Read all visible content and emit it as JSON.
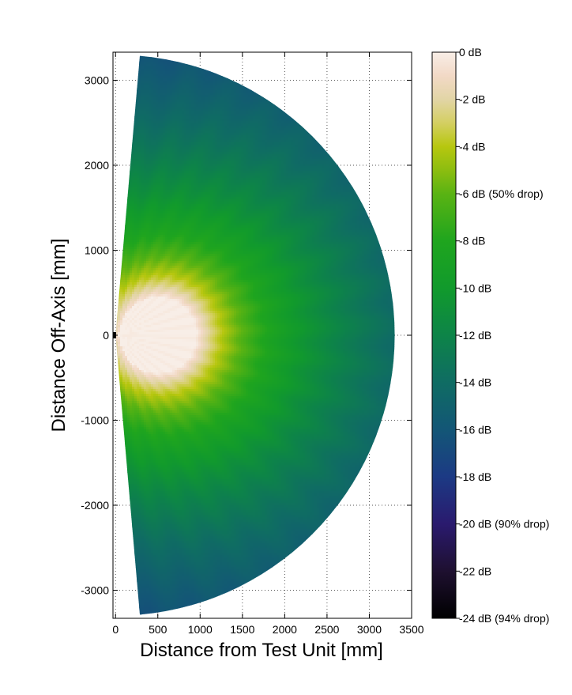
{
  "chart_data": {
    "type": "heatmap",
    "title": "",
    "xlabel": "Distance from Test Unit [mm]",
    "ylabel": "Distance Off-Axis [mm]",
    "xlim": [
      -30,
      3500
    ],
    "ylim": [
      -3330,
      3330
    ],
    "x_ticks": [
      {
        "value": 0,
        "label": "0"
      },
      {
        "value": 500,
        "label": "500"
      },
      {
        "value": 1000,
        "label": "1000"
      },
      {
        "value": 1500,
        "label": "1500"
      },
      {
        "value": 2000,
        "label": "2000"
      },
      {
        "value": 2500,
        "label": "2500"
      },
      {
        "value": 3000,
        "label": "3000"
      },
      {
        "value": 3500,
        "label": "3500"
      }
    ],
    "y_ticks": [
      {
        "value": 3000,
        "label": "3000"
      },
      {
        "value": 2000,
        "label": "2000"
      },
      {
        "value": 1000,
        "label": "1000"
      },
      {
        "value": 0,
        "label": "0"
      },
      {
        "value": -1000,
        "label": "-1000"
      },
      {
        "value": -2000,
        "label": "-2000"
      },
      {
        "value": -3000,
        "label": "-3000"
      }
    ],
    "grid": true,
    "grid_style": "dotted",
    "field": {
      "max_radius": 3300,
      "max_angle_deg": 85,
      "hot_spot_center": [
        500,
        0
      ],
      "hot_spot_radius": 450
    },
    "colorbar": {
      "range": [
        -24,
        0
      ],
      "ticks": [
        {
          "value": 0,
          "label": "0 dB"
        },
        {
          "value": -2,
          "label": "-2 dB"
        },
        {
          "value": -4,
          "label": "-4 dB"
        },
        {
          "value": -6,
          "label": "-6 dB (50% drop)"
        },
        {
          "value": -8,
          "label": "-8 dB"
        },
        {
          "value": -10,
          "label": "-10 dB"
        },
        {
          "value": -12,
          "label": "-12 dB"
        },
        {
          "value": -14,
          "label": "-14 dB"
        },
        {
          "value": -16,
          "label": "-16 dB"
        },
        {
          "value": -18,
          "label": "-18 dB"
        },
        {
          "value": -20,
          "label": "-20 dB (90% drop)"
        },
        {
          "value": -22,
          "label": "-22 dB"
        },
        {
          "value": -24,
          "label": "-24 dB (94% drop)"
        }
      ],
      "colormap": [
        {
          "value": 0,
          "color": "#f8eee7"
        },
        {
          "value": -1,
          "color": "#f2d9c6"
        },
        {
          "value": -2,
          "color": "#e2d5a6"
        },
        {
          "value": -3,
          "color": "#d4cf62"
        },
        {
          "value": -4,
          "color": "#b7c70f"
        },
        {
          "value": -5,
          "color": "#8cbd10"
        },
        {
          "value": -6,
          "color": "#5ab313"
        },
        {
          "value": -8,
          "color": "#1fa51e"
        },
        {
          "value": -10,
          "color": "#119a2c"
        },
        {
          "value": -12,
          "color": "#0d8448"
        },
        {
          "value": -14,
          "color": "#0f6c63"
        },
        {
          "value": -16,
          "color": "#135676"
        },
        {
          "value": -18,
          "color": "#1c3a84"
        },
        {
          "value": -20,
          "color": "#2a1a6e"
        },
        {
          "value": -22,
          "color": "#1e1030"
        },
        {
          "value": -24,
          "color": "#000000"
        }
      ]
    }
  }
}
